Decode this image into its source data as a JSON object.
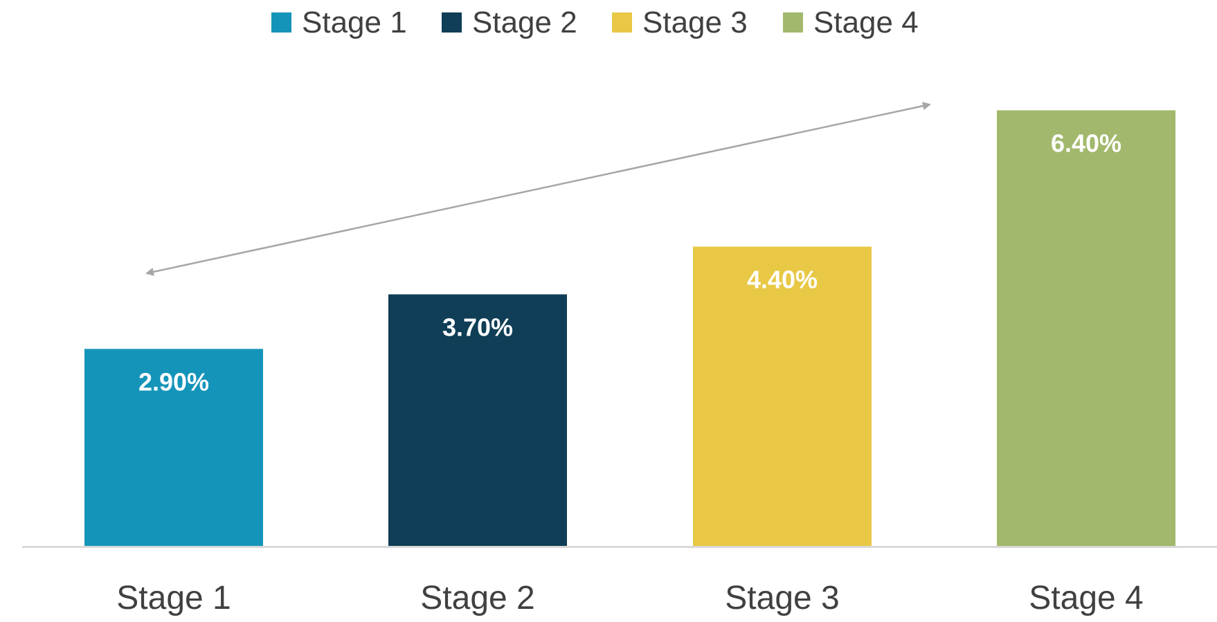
{
  "chart_data": {
    "type": "bar",
    "categories": [
      "Stage 1",
      "Stage 2",
      "Stage 3",
      "Stage 4"
    ],
    "values": [
      2.9,
      3.7,
      4.4,
      6.4
    ],
    "value_labels": [
      "2.90%",
      "3.70%",
      "4.40%",
      "6.40%"
    ],
    "colors": [
      "#1594BA",
      "#0F3E56",
      "#E8C845",
      "#A2B86C"
    ],
    "legend": {
      "entries": [
        "Stage 1",
        "Stage 2",
        "Stage 3",
        "Stage 4"
      ],
      "placement": "top-center"
    },
    "annotation": "double-headed-arrow",
    "ylim": [
      0,
      6.8
    ],
    "grid": false,
    "title": "",
    "xlabel": "",
    "ylabel": ""
  },
  "colors": {
    "axis": "#D9D9D9",
    "text": "#404040",
    "data_label": "#FFFFFF",
    "arrow": "#A6A6A6"
  }
}
